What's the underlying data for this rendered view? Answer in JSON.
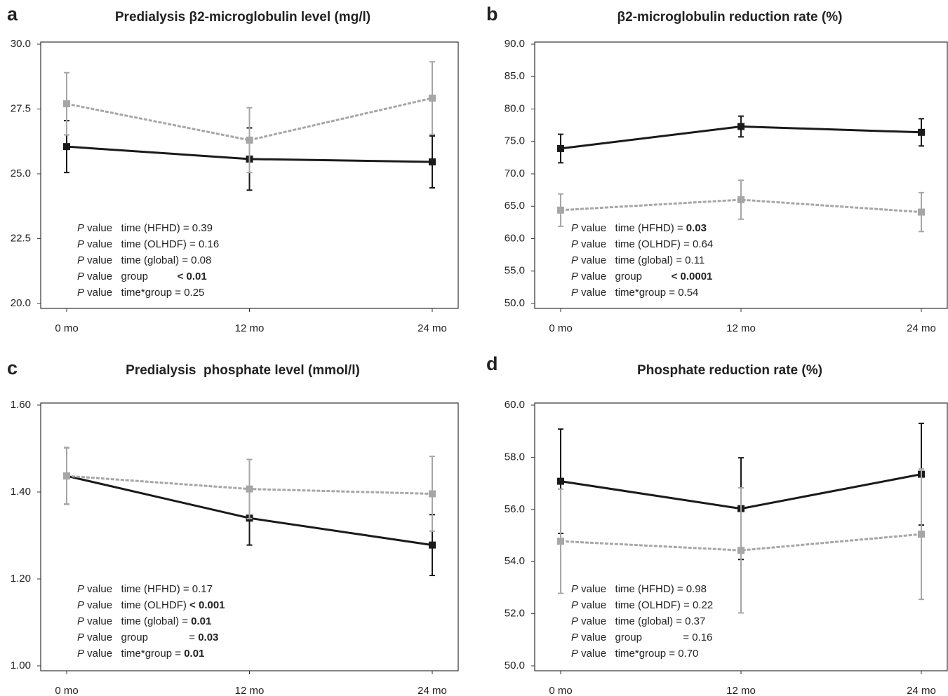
{
  "chart_data": [
    {
      "type": "line",
      "panel": "a",
      "title": "Predialysis β2-microglobulin level (mg/l)",
      "categories": [
        "0 mo",
        "12 mo",
        "24 mo"
      ],
      "series": [
        {
          "color": "#1a1a1a",
          "dashed": false,
          "values": [
            26.05,
            25.57,
            25.46
          ],
          "errors": [
            1.0,
            1.2,
            1.0
          ]
        },
        {
          "color": "#a6a6a6",
          "dashed": true,
          "values": [
            27.7,
            26.3,
            27.92
          ],
          "errors": [
            1.2,
            1.25,
            1.4
          ]
        }
      ],
      "ylim": [
        20,
        30
      ],
      "yticks": [
        {
          "value": 20,
          "label": "20.0"
        },
        22.5,
        {
          "value": 25,
          "label": "25.0"
        },
        27.5,
        {
          "value": 30,
          "label": "30.0"
        }
      ],
      "annotations": [
        [
          {
            "text": "P",
            "italic": true
          },
          {
            "text": " value   time (HFHD) = "
          },
          {
            "text": "0.39"
          }
        ],
        [
          {
            "text": "P",
            "italic": true
          },
          {
            "text": " value   time (OLHDF) = "
          },
          {
            "text": "0.16"
          }
        ],
        [
          {
            "text": "P",
            "italic": true
          },
          {
            "text": " value   time (global) = "
          },
          {
            "text": "0.08"
          }
        ],
        [
          {
            "text": "P",
            "italic": true
          },
          {
            "text": " value   group          "
          },
          {
            "text": "< 0.01",
            "bold": true
          }
        ],
        [
          {
            "text": "P",
            "italic": true
          },
          {
            "text": " value   time*group = "
          },
          {
            "text": "0.25"
          }
        ]
      ]
    },
    {
      "type": "line",
      "panel": "b",
      "title": "β2-microglobulin reduction rate (%)",
      "categories": [
        "0 mo",
        "12 mo",
        "24 mo"
      ],
      "series": [
        {
          "color": "#1a1a1a",
          "dashed": false,
          "values": [
            73.9,
            77.3,
            76.4
          ],
          "errors": [
            2.2,
            1.6,
            2.1
          ]
        },
        {
          "color": "#a6a6a6",
          "dashed": true,
          "values": [
            64.4,
            66.0,
            64.1
          ],
          "errors": [
            2.5,
            3.0,
            3.0
          ]
        }
      ],
      "ylim": [
        50,
        90
      ],
      "yticks": [
        {
          "value": 50,
          "label": "50.0"
        },
        {
          "value": 55,
          "label": "55.0"
        },
        {
          "value": 60,
          "label": "60.0"
        },
        {
          "value": 65,
          "label": "65.0"
        },
        {
          "value": 70,
          "label": "70.0"
        },
        {
          "value": 75,
          "label": "75.0"
        },
        {
          "value": 80,
          "label": "80.0"
        },
        {
          "value": 85,
          "label": "85.0"
        },
        {
          "value": 90,
          "label": "90.0"
        }
      ],
      "annotations": [
        [
          {
            "text": "P",
            "italic": true
          },
          {
            "text": " value   time (HFHD) = "
          },
          {
            "text": "0.03",
            "bold": true
          }
        ],
        [
          {
            "text": "P",
            "italic": true
          },
          {
            "text": " value   time (OLHDF) = "
          },
          {
            "text": "0.64"
          }
        ],
        [
          {
            "text": "P",
            "italic": true
          },
          {
            "text": " value   time (global) = "
          },
          {
            "text": "0.11"
          }
        ],
        [
          {
            "text": "P",
            "italic": true
          },
          {
            "text": " value   group          "
          },
          {
            "text": "< 0.0001",
            "bold": true
          }
        ],
        [
          {
            "text": "P",
            "italic": true
          },
          {
            "text": " value   time*group = "
          },
          {
            "text": "0.54"
          }
        ]
      ]
    },
    {
      "type": "line",
      "panel": "c",
      "title": "Predialysis  phosphate level (mmol/l)",
      "categories": [
        "0 mo",
        "12 mo",
        "24 mo"
      ],
      "series": [
        {
          "color": "#1a1a1a",
          "dashed": false,
          "values": [
            1.437,
            1.34,
            1.278
          ],
          "errors": [
            0.065,
            0.062,
            0.07
          ]
        },
        {
          "color": "#a6a6a6",
          "dashed": true,
          "values": [
            1.437,
            1.407,
            1.396
          ],
          "errors": [
            0.065,
            0.068,
            0.086
          ]
        }
      ],
      "ylim": [
        1.0,
        1.6
      ],
      "yticks": [
        {
          "value": 1.0,
          "label": "1.00"
        },
        {
          "value": 1.2,
          "label": "1.20"
        },
        {
          "value": 1.4,
          "label": "1.40"
        },
        {
          "value": 1.6,
          "label": "1.60"
        }
      ],
      "annotations": [
        [
          {
            "text": "P",
            "italic": true
          },
          {
            "text": " value   time (HFHD) = "
          },
          {
            "text": "0.17"
          }
        ],
        [
          {
            "text": "P",
            "italic": true
          },
          {
            "text": " value   time (OLHDF) "
          },
          {
            "text": "< 0.001",
            "bold": true
          }
        ],
        [
          {
            "text": "P",
            "italic": true
          },
          {
            "text": " value   time (global) = "
          },
          {
            "text": "0.01",
            "bold": true
          }
        ],
        [
          {
            "text": "P",
            "italic": true
          },
          {
            "text": " value   group              = "
          },
          {
            "text": "0.03",
            "bold": true
          }
        ],
        [
          {
            "text": "P",
            "italic": true
          },
          {
            "text": " value   time*group = "
          },
          {
            "text": "0.01",
            "bold": true
          }
        ]
      ]
    },
    {
      "type": "line",
      "panel": "d",
      "title": "Phosphate reduction rate (%)",
      "categories": [
        "0 mo",
        "12 mo",
        "24 mo"
      ],
      "series": [
        {
          "color": "#1a1a1a",
          "dashed": false,
          "values": [
            57.08,
            56.03,
            57.35
          ],
          "errors": [
            2.0,
            1.95,
            1.95
          ]
        },
        {
          "color": "#a6a6a6",
          "dashed": true,
          "values": [
            54.78,
            54.43,
            55.05
          ],
          "errors": [
            2.0,
            2.4,
            2.5
          ]
        }
      ],
      "ylim": [
        50,
        60
      ],
      "yticks": [
        {
          "value": 50,
          "label": "50.0"
        },
        {
          "value": 52,
          "label": "52.0"
        },
        {
          "value": 54,
          "label": "54.0"
        },
        {
          "value": 56,
          "label": "56.0"
        },
        {
          "value": 58,
          "label": "58.0"
        },
        {
          "value": 60,
          "label": "60.0"
        }
      ],
      "annotations": [
        [
          {
            "text": "P",
            "italic": true
          },
          {
            "text": " value   time (HFHD) = "
          },
          {
            "text": "0.98"
          }
        ],
        [
          {
            "text": "P",
            "italic": true
          },
          {
            "text": " value   time (OLHDF) = "
          },
          {
            "text": "0.22"
          }
        ],
        [
          {
            "text": "P",
            "italic": true
          },
          {
            "text": " value   time (global) = "
          },
          {
            "text": "0.37"
          }
        ],
        [
          {
            "text": "P",
            "italic": true
          },
          {
            "text": " value   group              = "
          },
          {
            "text": "0.16"
          }
        ],
        [
          {
            "text": "P",
            "italic": true
          },
          {
            "text": " value   time*group = "
          },
          {
            "text": "0.70"
          }
        ]
      ]
    }
  ]
}
